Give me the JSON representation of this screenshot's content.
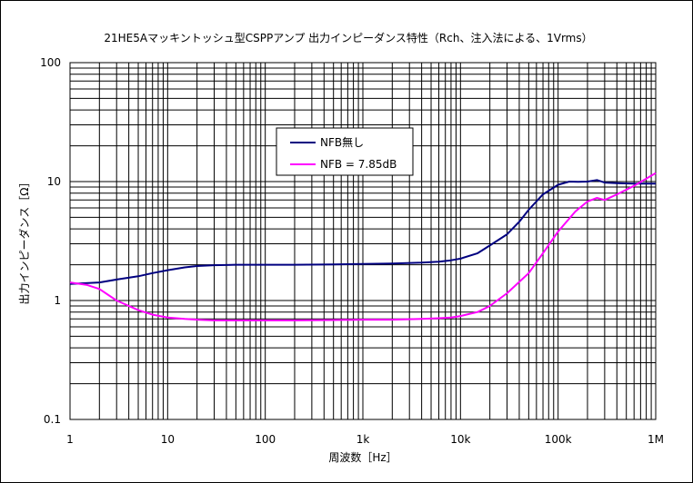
{
  "chart_data": {
    "type": "line",
    "title": "21HE5Aマッキントッシュ型CSPPアンプ 出力インピーダンス特性（Rch、注入法による、1Vrms）",
    "xlabel": "周波数［Hz］",
    "ylabel": "出力インピーダンス［Ω］",
    "xscale": "log",
    "yscale": "log",
    "xlim": [
      1,
      1000000
    ],
    "ylim": [
      0.1,
      100
    ],
    "x_ticks": [
      {
        "value": 1,
        "label": "1"
      },
      {
        "value": 10,
        "label": "10"
      },
      {
        "value": 100,
        "label": "100"
      },
      {
        "value": 1000,
        "label": "1k"
      },
      {
        "value": 10000,
        "label": "10k"
      },
      {
        "value": 100000,
        "label": "100k"
      },
      {
        "value": 1000000,
        "label": "1M"
      }
    ],
    "y_ticks": [
      {
        "value": 0.1,
        "label": "0.1"
      },
      {
        "value": 1,
        "label": "1"
      },
      {
        "value": 10,
        "label": "10"
      },
      {
        "value": 100,
        "label": "100"
      }
    ],
    "grid": true,
    "legend_position": "center-left",
    "series": [
      {
        "name": "NFB無し",
        "color": "#000080",
        "x": [
          1,
          2,
          3,
          5,
          7,
          10,
          15,
          20,
          30,
          50,
          100,
          200,
          500,
          1000,
          2000,
          4000,
          6000,
          8000,
          10000,
          15000,
          20000,
          30000,
          40000,
          50000,
          70000,
          100000,
          130000,
          160000,
          200000,
          250000,
          300000,
          400000,
          600000,
          1000000
        ],
        "values": [
          1.38,
          1.42,
          1.5,
          1.6,
          1.7,
          1.8,
          1.9,
          1.95,
          1.98,
          2.0,
          2.0,
          2.0,
          2.01,
          2.03,
          2.05,
          2.08,
          2.12,
          2.18,
          2.25,
          2.5,
          2.9,
          3.6,
          4.6,
          5.8,
          7.8,
          9.4,
          10.0,
          9.95,
          10.0,
          10.3,
          9.8,
          9.7,
          9.6,
          9.6
        ]
      },
      {
        "name": "NFB = 7.85dB",
        "color": "#ff00ff",
        "x": [
          1,
          1.5,
          2,
          3,
          5,
          7,
          10,
          15,
          20,
          30,
          50,
          100,
          200,
          500,
          1000,
          2000,
          4000,
          6000,
          8000,
          10000,
          15000,
          20000,
          30000,
          50000,
          70000,
          100000,
          150000,
          200000,
          250000,
          300000,
          400000,
          600000,
          1000000
        ],
        "values": [
          1.42,
          1.35,
          1.25,
          1.0,
          0.83,
          0.76,
          0.72,
          0.7,
          0.69,
          0.68,
          0.68,
          0.68,
          0.68,
          0.685,
          0.69,
          0.69,
          0.7,
          0.71,
          0.72,
          0.74,
          0.8,
          0.9,
          1.15,
          1.7,
          2.5,
          3.8,
          5.6,
          6.8,
          7.3,
          7.0,
          7.8,
          9.2,
          11.8
        ]
      }
    ]
  }
}
